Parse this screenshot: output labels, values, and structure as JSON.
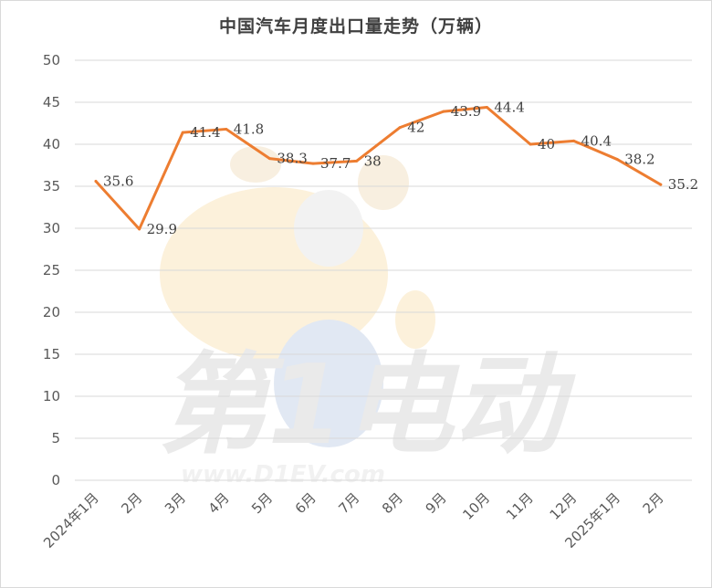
{
  "chart_data": {
    "type": "line",
    "title": "中国汽车月度出口量走势（万辆）",
    "categories": [
      "2024年1月",
      "2月",
      "3月",
      "4月",
      "5月",
      "6月",
      "7月",
      "8月",
      "9月",
      "10月",
      "11月",
      "12月",
      "2025年1月",
      "2月"
    ],
    "series": [
      {
        "values": [
          35.6,
          29.9,
          41.4,
          41.8,
          38.3,
          37.7,
          38,
          42,
          43.9,
          44.4,
          40,
          40.4,
          38.2,
          35.2
        ],
        "labels": [
          "35.6",
          "29.9",
          "41.4",
          "41.8",
          "38.3",
          "37.7",
          "38",
          "42",
          "43.9",
          "44.4",
          "40",
          "40.4",
          "38.2",
          "35.2"
        ]
      }
    ],
    "yticks": [
      "0",
      "5",
      "10",
      "15",
      "20",
      "25",
      "30",
      "35",
      "40",
      "45",
      "50"
    ],
    "ylim": [
      0,
      50
    ],
    "grid": true,
    "line_color": "#ED7D31"
  },
  "watermark": {
    "text": "www.D1EV.com",
    "brand": "第1电动"
  }
}
